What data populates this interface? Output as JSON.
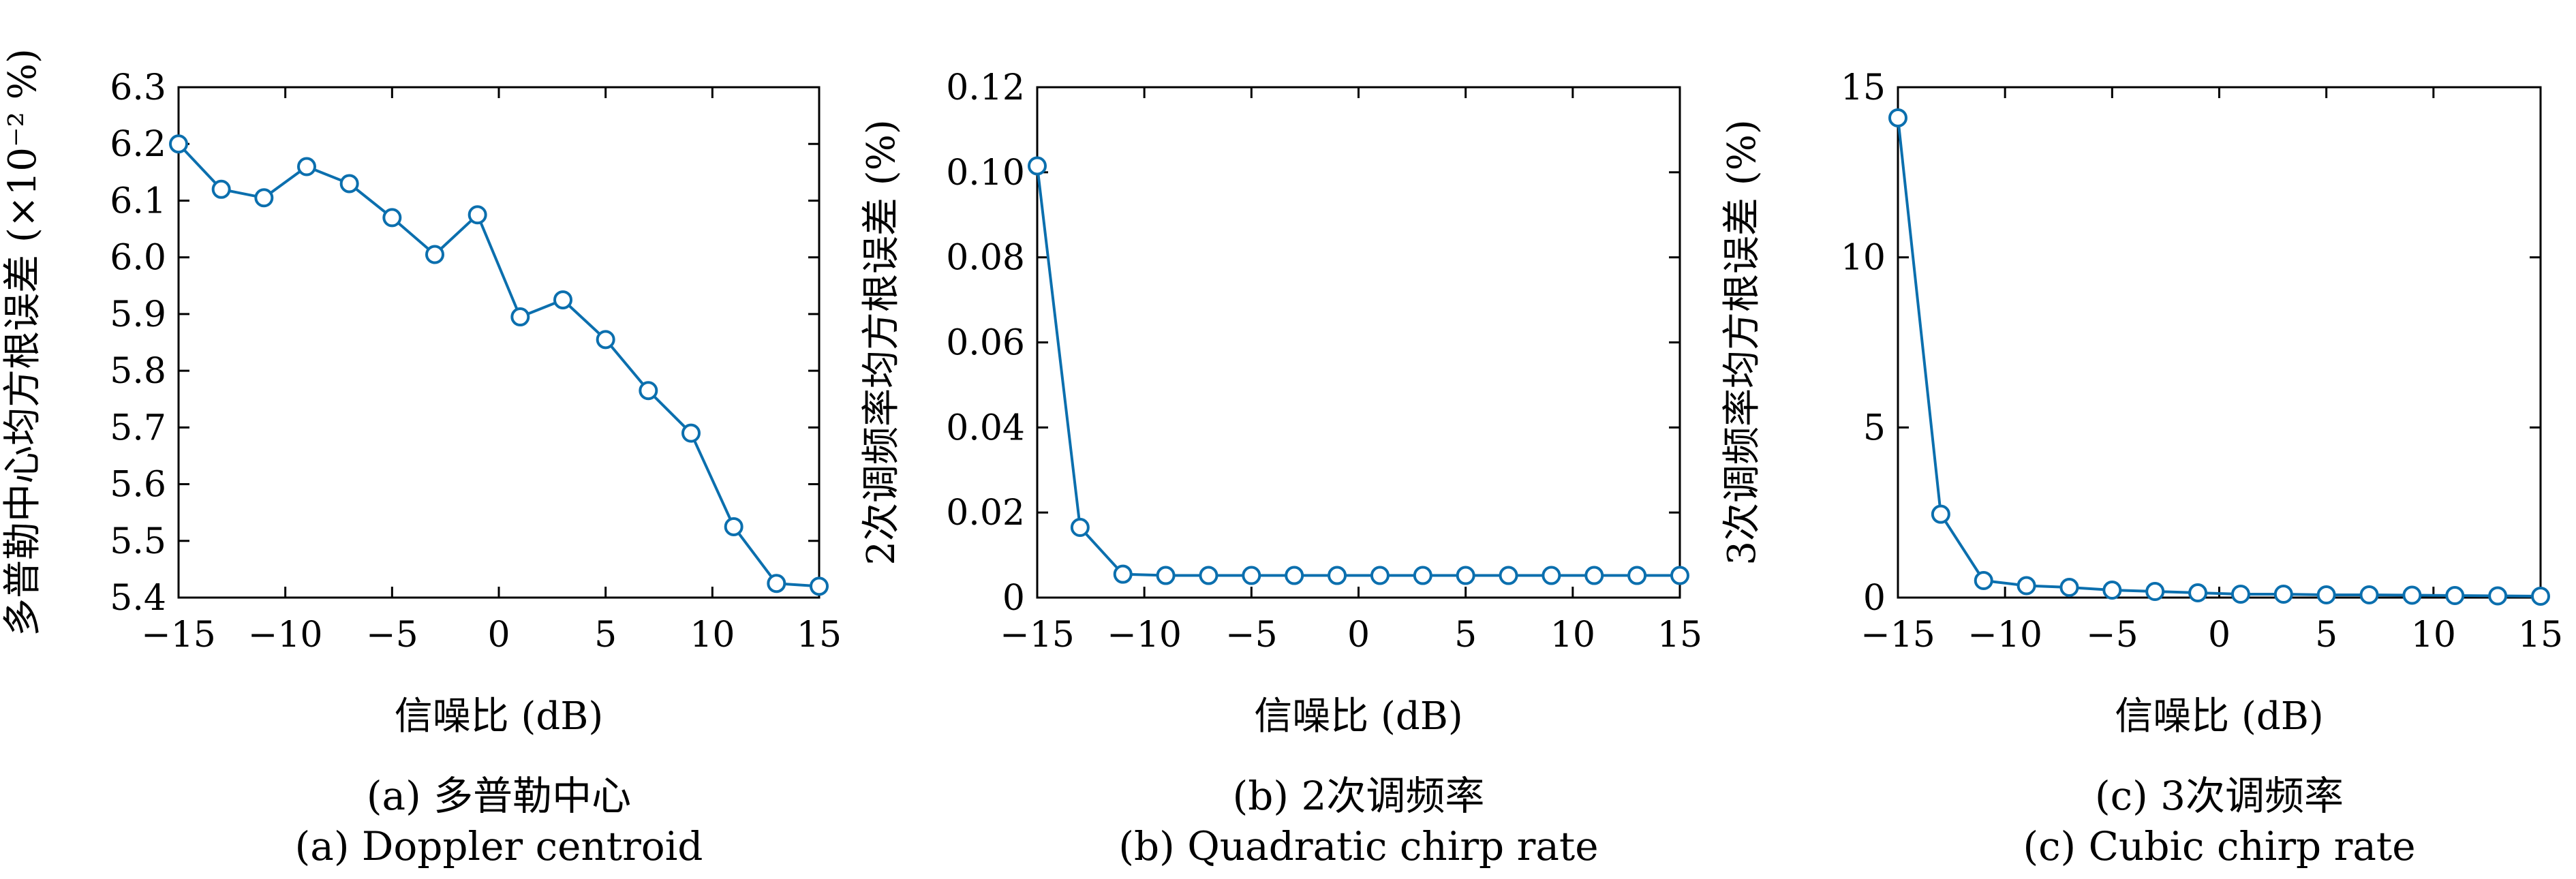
{
  "colors": {
    "line": "#0b6fae",
    "marker_fill": "#ffffff",
    "axis": "#000000"
  },
  "chart_data": [
    {
      "type": "line",
      "xlabel": "信噪比 (dB)",
      "ylabel": "多普勒中心均方根误差 (×10⁻² %)",
      "caption_cn": "(a) 多普勒中心",
      "caption_en": "(a) Doppler centroid",
      "xlim": [
        -15,
        15
      ],
      "ylim": [
        5.4,
        6.3
      ],
      "xticks": [
        -15,
        -10,
        -5,
        0,
        5,
        10,
        15
      ],
      "xtick_labels": [
        "−15",
        "−10",
        "−5",
        "0",
        "5",
        "10",
        "15"
      ],
      "yticks": [
        5.4,
        5.5,
        5.6,
        5.7,
        5.8,
        5.9,
        6.0,
        6.1,
        6.2,
        6.3
      ],
      "ytick_labels": [
        "5.4",
        "5.5",
        "5.6",
        "5.7",
        "5.8",
        "5.9",
        "6.0",
        "6.1",
        "6.2",
        "6.3"
      ],
      "grid": false,
      "x": [
        -15,
        -13,
        -11,
        -9,
        -7,
        -5,
        -3,
        -1,
        1,
        3,
        5,
        7,
        9,
        11,
        13,
        15
      ],
      "y": [
        6.2,
        6.12,
        6.105,
        6.16,
        6.13,
        6.07,
        6.005,
        6.075,
        5.895,
        5.925,
        5.855,
        5.765,
        5.69,
        5.525,
        5.425,
        5.42
      ]
    },
    {
      "type": "line",
      "xlabel": "信噪比 (dB)",
      "ylabel": "2次调频率均方根误差 (%)",
      "caption_cn": "(b) 2次调频率",
      "caption_en": "(b) Quadratic chirp rate",
      "xlim": [
        -15,
        15
      ],
      "ylim": [
        0,
        0.12
      ],
      "xticks": [
        -15,
        -10,
        -5,
        0,
        5,
        10,
        15
      ],
      "xtick_labels": [
        "−15",
        "−10",
        "−5",
        "0",
        "5",
        "10",
        "15"
      ],
      "yticks": [
        0,
        0.02,
        0.04,
        0.06,
        0.08,
        0.1,
        0.12
      ],
      "ytick_labels": [
        "0",
        "0.02",
        "0.04",
        "0.06",
        "0.08",
        "0.10",
        "0.12"
      ],
      "grid": false,
      "x": [
        -15,
        -13,
        -11,
        -9,
        -7,
        -5,
        -3,
        -1,
        1,
        3,
        5,
        7,
        9,
        11,
        13,
        15
      ],
      "y": [
        0.1015,
        0.0165,
        0.0055,
        0.0052,
        0.0052,
        0.0052,
        0.0052,
        0.0052,
        0.0052,
        0.0052,
        0.0052,
        0.0052,
        0.0052,
        0.0052,
        0.0052,
        0.0052
      ]
    },
    {
      "type": "line",
      "xlabel": "信噪比 (dB)",
      "ylabel": "3次调频率均方根误差 (%)",
      "caption_cn": "(c) 3次调频率",
      "caption_en": "(c) Cubic chirp rate",
      "xlim": [
        -15,
        15
      ],
      "ylim": [
        0,
        15
      ],
      "xticks": [
        -15,
        -10,
        -5,
        0,
        5,
        10,
        15
      ],
      "xtick_labels": [
        "−15",
        "−10",
        "−5",
        "0",
        "5",
        "10",
        "15"
      ],
      "yticks": [
        0,
        5,
        10,
        15
      ],
      "ytick_labels": [
        "0",
        "5",
        "10",
        "15"
      ],
      "grid": false,
      "x": [
        -15,
        -13,
        -11,
        -9,
        -7,
        -5,
        -3,
        -1,
        1,
        3,
        5,
        7,
        9,
        11,
        13,
        15
      ],
      "y": [
        14.1,
        2.45,
        0.5,
        0.35,
        0.3,
        0.22,
        0.18,
        0.14,
        0.1,
        0.1,
        0.08,
        0.08,
        0.07,
        0.06,
        0.05,
        0.04
      ]
    }
  ]
}
